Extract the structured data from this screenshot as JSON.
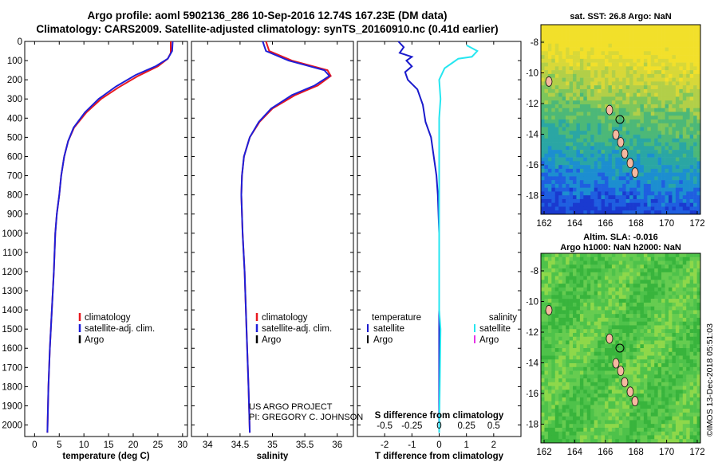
{
  "header": {
    "title_line1": "Argo profile: aoml 5902136_286 10-Sep-2016 12.74S 167.23E (DM data)",
    "title_line2": "Climatology: CARS2009. Satellite-adjusted climatology: synTS_20160910.nc (0.41d earlier)"
  },
  "colors": {
    "climatology": "#e8191f",
    "satellite_adj": "#1f1fd8",
    "argo": "#000000",
    "temp_diff": "#1a1acc",
    "sal_diff": "#26e6f0",
    "sal_argo": "#e633e6"
  },
  "chart_data": [
    {
      "type": "line",
      "id": "temperature",
      "xlabel": "temperature (deg C)",
      "xlim": [
        -2,
        31
      ],
      "xticks": [
        0,
        5,
        10,
        15,
        20,
        25,
        30
      ],
      "ylim": [
        0,
        2060
      ],
      "ylabel_ticks": [
        0,
        100,
        200,
        300,
        400,
        500,
        600,
        700,
        800,
        900,
        1000,
        1100,
        1200,
        1300,
        1400,
        1500,
        1600,
        1700,
        1800,
        1900,
        2000
      ],
      "legend": [
        "climatology",
        "satellite-adj. clim.",
        "Argo"
      ],
      "legend_position": "lower-left",
      "series": [
        {
          "name": "climatology",
          "color": "#e8191f",
          "points": [
            [
              27.6,
              0
            ],
            [
              27.6,
              60
            ],
            [
              27.0,
              90
            ],
            [
              25.0,
              130
            ],
            [
              21.0,
              180
            ],
            [
              17.0,
              240
            ],
            [
              13.5,
              300
            ],
            [
              10.5,
              370
            ],
            [
              8.0,
              450
            ],
            [
              6.8,
              520
            ],
            [
              6.0,
              600
            ],
            [
              5.4,
              700
            ],
            [
              5.0,
              800
            ],
            [
              4.5,
              900
            ],
            [
              4.2,
              1000
            ],
            [
              3.9,
              1200
            ],
            [
              3.5,
              1400
            ],
            [
              3.1,
              1600
            ],
            [
              2.8,
              1800
            ],
            [
              2.6,
              2040
            ]
          ]
        },
        {
          "name": "satellite-adj. clim.",
          "color": "#1f1fd8",
          "points": [
            [
              28.0,
              0
            ],
            [
              27.9,
              50
            ],
            [
              27.0,
              90
            ],
            [
              24.5,
              130
            ],
            [
              20.5,
              175
            ],
            [
              16.5,
              235
            ],
            [
              13.0,
              300
            ],
            [
              10.2,
              370
            ],
            [
              7.9,
              450
            ],
            [
              6.8,
              520
            ],
            [
              6.0,
              600
            ],
            [
              5.4,
              700
            ],
            [
              5.0,
              800
            ],
            [
              4.5,
              900
            ],
            [
              4.2,
              1000
            ],
            [
              3.9,
              1200
            ],
            [
              3.5,
              1400
            ],
            [
              3.1,
              1600
            ],
            [
              2.8,
              1800
            ],
            [
              2.6,
              2040
            ]
          ]
        }
      ]
    },
    {
      "type": "line",
      "id": "salinity",
      "xlabel": "salinity",
      "xlim": [
        33.75,
        36.25
      ],
      "xticks": [
        34,
        34.5,
        35,
        35.5,
        36
      ],
      "xticklabels": [
        "34",
        "34.5",
        "35",
        "35.5",
        "36"
      ],
      "ylim": [
        0,
        2060
      ],
      "legend": [
        "climatology",
        "satellite-adj. clim.",
        "Argo"
      ],
      "legend_position": "lower-right",
      "series": [
        {
          "name": "climatology",
          "color": "#e8191f",
          "points": [
            [
              34.9,
              0
            ],
            [
              34.95,
              50
            ],
            [
              35.3,
              100
            ],
            [
              35.85,
              150
            ],
            [
              35.9,
              180
            ],
            [
              35.7,
              230
            ],
            [
              35.35,
              280
            ],
            [
              35.0,
              350
            ],
            [
              34.8,
              420
            ],
            [
              34.65,
              500
            ],
            [
              34.56,
              600
            ],
            [
              34.53,
              700
            ],
            [
              34.52,
              800
            ],
            [
              34.54,
              1000
            ],
            [
              34.57,
              1200
            ],
            [
              34.6,
              1500
            ],
            [
              34.63,
              1800
            ],
            [
              34.65,
              2040
            ]
          ]
        },
        {
          "name": "satellite-adj. clim.",
          "color": "#1f1fd8",
          "points": [
            [
              34.85,
              0
            ],
            [
              34.9,
              50
            ],
            [
              35.25,
              100
            ],
            [
              35.8,
              150
            ],
            [
              35.88,
              180
            ],
            [
              35.65,
              230
            ],
            [
              35.3,
              280
            ],
            [
              34.98,
              350
            ],
            [
              34.79,
              420
            ],
            [
              34.65,
              500
            ],
            [
              34.56,
              600
            ],
            [
              34.53,
              700
            ],
            [
              34.52,
              800
            ],
            [
              34.54,
              1000
            ],
            [
              34.57,
              1200
            ],
            [
              34.6,
              1500
            ],
            [
              34.63,
              1800
            ],
            [
              34.65,
              2040
            ]
          ]
        }
      ]
    },
    {
      "type": "line",
      "id": "difference",
      "xlabel": "T difference from climatology",
      "xlabel_top": "S difference from climatology",
      "xlim": [
        -3,
        3
      ],
      "xticks": [
        -2,
        -1,
        0,
        1,
        2
      ],
      "s_xticks": [
        -0.5,
        -0.25,
        0,
        0.25,
        0.5
      ],
      "ylim": [
        0,
        2060
      ],
      "legend_left": {
        "heading": "temperature",
        "items": [
          "satellite",
          "Argo"
        ]
      },
      "legend_right": {
        "heading": "salinity",
        "items": [
          "satellite",
          "Argo"
        ]
      },
      "series": [
        {
          "name": "temperature satellite",
          "color": "#1a1acc",
          "points": [
            [
              -1.5,
              0
            ],
            [
              -1.3,
              30
            ],
            [
              -1.45,
              60
            ],
            [
              -1.0,
              80
            ],
            [
              -1.2,
              100
            ],
            [
              -1.0,
              130
            ],
            [
              -1.25,
              160
            ],
            [
              -1.15,
              200
            ],
            [
              -0.8,
              250
            ],
            [
              -0.6,
              330
            ],
            [
              -0.5,
              420
            ],
            [
              -0.3,
              500
            ],
            [
              -0.2,
              600
            ],
            [
              -0.1,
              700
            ],
            [
              -0.05,
              800
            ],
            [
              0,
              1000
            ],
            [
              0,
              2040
            ]
          ]
        },
        {
          "name": "salinity satellite",
          "color": "#26e6f0",
          "points": [
            [
              1.0,
              20
            ],
            [
              1.4,
              50
            ],
            [
              1.2,
              80
            ],
            [
              0.7,
              90
            ],
            [
              0.5,
              110
            ],
            [
              0.2,
              140
            ],
            [
              0.0,
              200
            ],
            [
              0.05,
              300
            ],
            [
              0.0,
              400
            ],
            [
              0.0,
              1400
            ],
            [
              0.05,
              1500
            ],
            [
              0.0,
              2040
            ]
          ]
        }
      ]
    }
  ],
  "maps": {
    "sat": {
      "title": "sat. SST: 26.8 Argo: NaN",
      "yticks": [
        "-8",
        "-10",
        "-12",
        "-14",
        "-16",
        "-18"
      ],
      "xticks": [
        "162",
        "164",
        "166",
        "168",
        "170",
        "172"
      ]
    },
    "alt": {
      "title1": "Altim. SLA: -0.016",
      "title2": "Argo h1000: NaN h2000: NaN",
      "yticks": [
        "-8",
        "-10",
        "-12",
        "-14",
        "-16",
        "-18"
      ],
      "xticks": [
        "162",
        "164",
        "166",
        "168",
        "170",
        "172"
      ]
    }
  },
  "notes": {
    "project1": "US ARGO PROJECT",
    "project2": "PI: GREGORY C. JOHNSON",
    "credit": "©IMOS 13-Dec-2018 05:51:03"
  }
}
